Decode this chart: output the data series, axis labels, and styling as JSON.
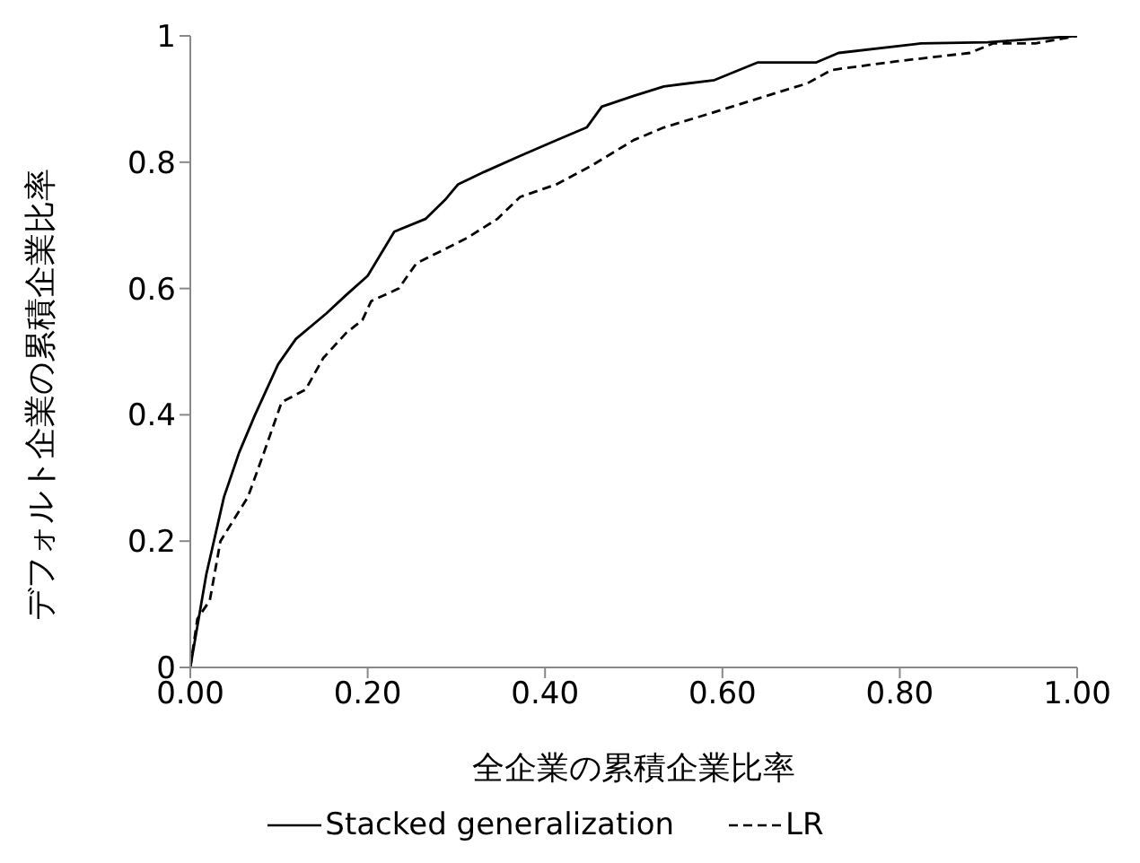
{
  "chart_data": {
    "type": "line",
    "xlabel": "全企業の累積企業比率",
    "ylabel": "デフォルト企業の累積企業比率",
    "xlim": [
      0,
      1
    ],
    "ylim": [
      0,
      1
    ],
    "xticks": [
      {
        "value": 0,
        "label": "0.00"
      },
      {
        "value": 0.2,
        "label": "0.20"
      },
      {
        "value": 0.4,
        "label": "0.40"
      },
      {
        "value": 0.6,
        "label": "0.60"
      },
      {
        "value": 0.8,
        "label": "0.80"
      },
      {
        "value": 1,
        "label": "1.00"
      }
    ],
    "yticks": [
      0,
      0.2,
      0.4,
      0.6,
      0.8,
      1
    ],
    "grid": false,
    "legend": "bottom",
    "marker": "none",
    "series": [
      {
        "name": "Stacked generalization",
        "color": "#000000",
        "line_style": "solid",
        "x": [
          0,
          0.018,
          0.038,
          0.055,
          0.073,
          0.099,
          0.119,
          0.153,
          0.176,
          0.2,
          0.23,
          0.265,
          0.287,
          0.302,
          0.332,
          0.372,
          0.413,
          0.447,
          0.464,
          0.5,
          0.534,
          0.591,
          0.64,
          0.706,
          0.731,
          0.824,
          0.899,
          1
        ],
        "values": [
          0,
          0.147,
          0.27,
          0.34,
          0.4,
          0.48,
          0.52,
          0.56,
          0.59,
          0.62,
          0.69,
          0.71,
          0.74,
          0.765,
          0.785,
          0.81,
          0.835,
          0.855,
          0.888,
          0.905,
          0.92,
          0.93,
          0.958,
          0.958,
          0.973,
          0.988,
          0.99,
          1
        ]
      },
      {
        "name": "LR",
        "color": "#000000",
        "line_style": "dashed",
        "x": [
          0,
          0.008,
          0.022,
          0.034,
          0.065,
          0.083,
          0.103,
          0.13,
          0.15,
          0.176,
          0.194,
          0.204,
          0.235,
          0.255,
          0.291,
          0.312,
          0.346,
          0.372,
          0.413,
          0.453,
          0.5,
          0.534,
          0.581,
          0.65,
          0.696,
          0.723,
          0.798,
          0.879,
          0.905,
          0.953,
          1
        ],
        "values": [
          0,
          0.077,
          0.106,
          0.2,
          0.27,
          0.34,
          0.42,
          0.44,
          0.49,
          0.53,
          0.55,
          0.58,
          0.6,
          0.64,
          0.665,
          0.68,
          0.71,
          0.745,
          0.765,
          0.795,
          0.835,
          0.855,
          0.875,
          0.905,
          0.925,
          0.946,
          0.96,
          0.973,
          0.988,
          0.988,
          1
        ]
      }
    ]
  }
}
